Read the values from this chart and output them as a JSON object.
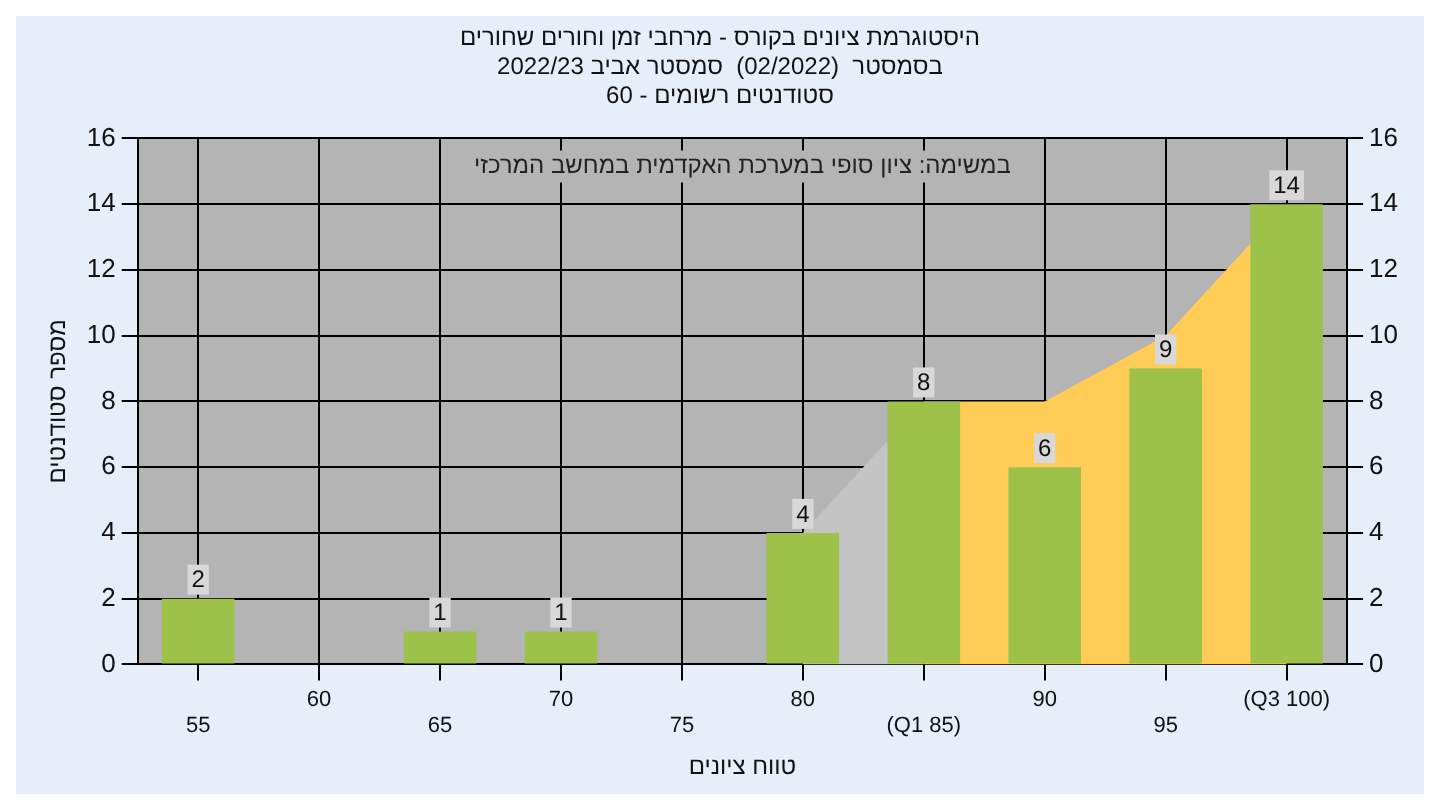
{
  "chart_data": {
    "type": "bar",
    "title": "היסטוגרמת ציונים בקורס - מרחבי זמן וחורים שחורים\nבסמסטר  (02/2022)  סמסטר אביב 2022/23",
    "subtitle": "סטודנטים רשומים - 60",
    "xlabel": "טווח ציונים",
    "ylabel": "מספר סטודנטים",
    "annotations": [
      "במשימה: ציון סופי במערכת האקדמית במחשב המרכזי"
    ],
    "categories": [
      "55",
      "60",
      "65",
      "70",
      "75",
      "80",
      "(Q1 85)",
      "90",
      "95",
      "(Q3 100)"
    ],
    "series": [
      {
        "color": "#9cc24a",
        "values": [
          2,
          0,
          1,
          1,
          0,
          4,
          8,
          6,
          9,
          14
        ],
        "value_labels": [
          "2",
          null,
          "1",
          "1",
          null,
          "4",
          "8",
          "6",
          "9",
          "14"
        ]
      },
      {
        "type": "area",
        "color": "#c4c4c4",
        "values": [
          null,
          null,
          null,
          null,
          null,
          4,
          8,
          null,
          null,
          null
        ]
      },
      {
        "type": "area",
        "color": "#ffcc55",
        "values": [
          null,
          null,
          null,
          null,
          null,
          null,
          8,
          8,
          10,
          14
        ]
      }
    ],
    "ylim": [
      0,
      16
    ],
    "yticks": [
      0,
      2,
      4,
      6,
      8,
      10,
      12,
      14,
      16
    ],
    "y2lim": [
      0,
      16
    ],
    "y2ticks": [
      0,
      2,
      4,
      6,
      8,
      10,
      12,
      14,
      16
    ],
    "grid": true,
    "legend": false
  }
}
